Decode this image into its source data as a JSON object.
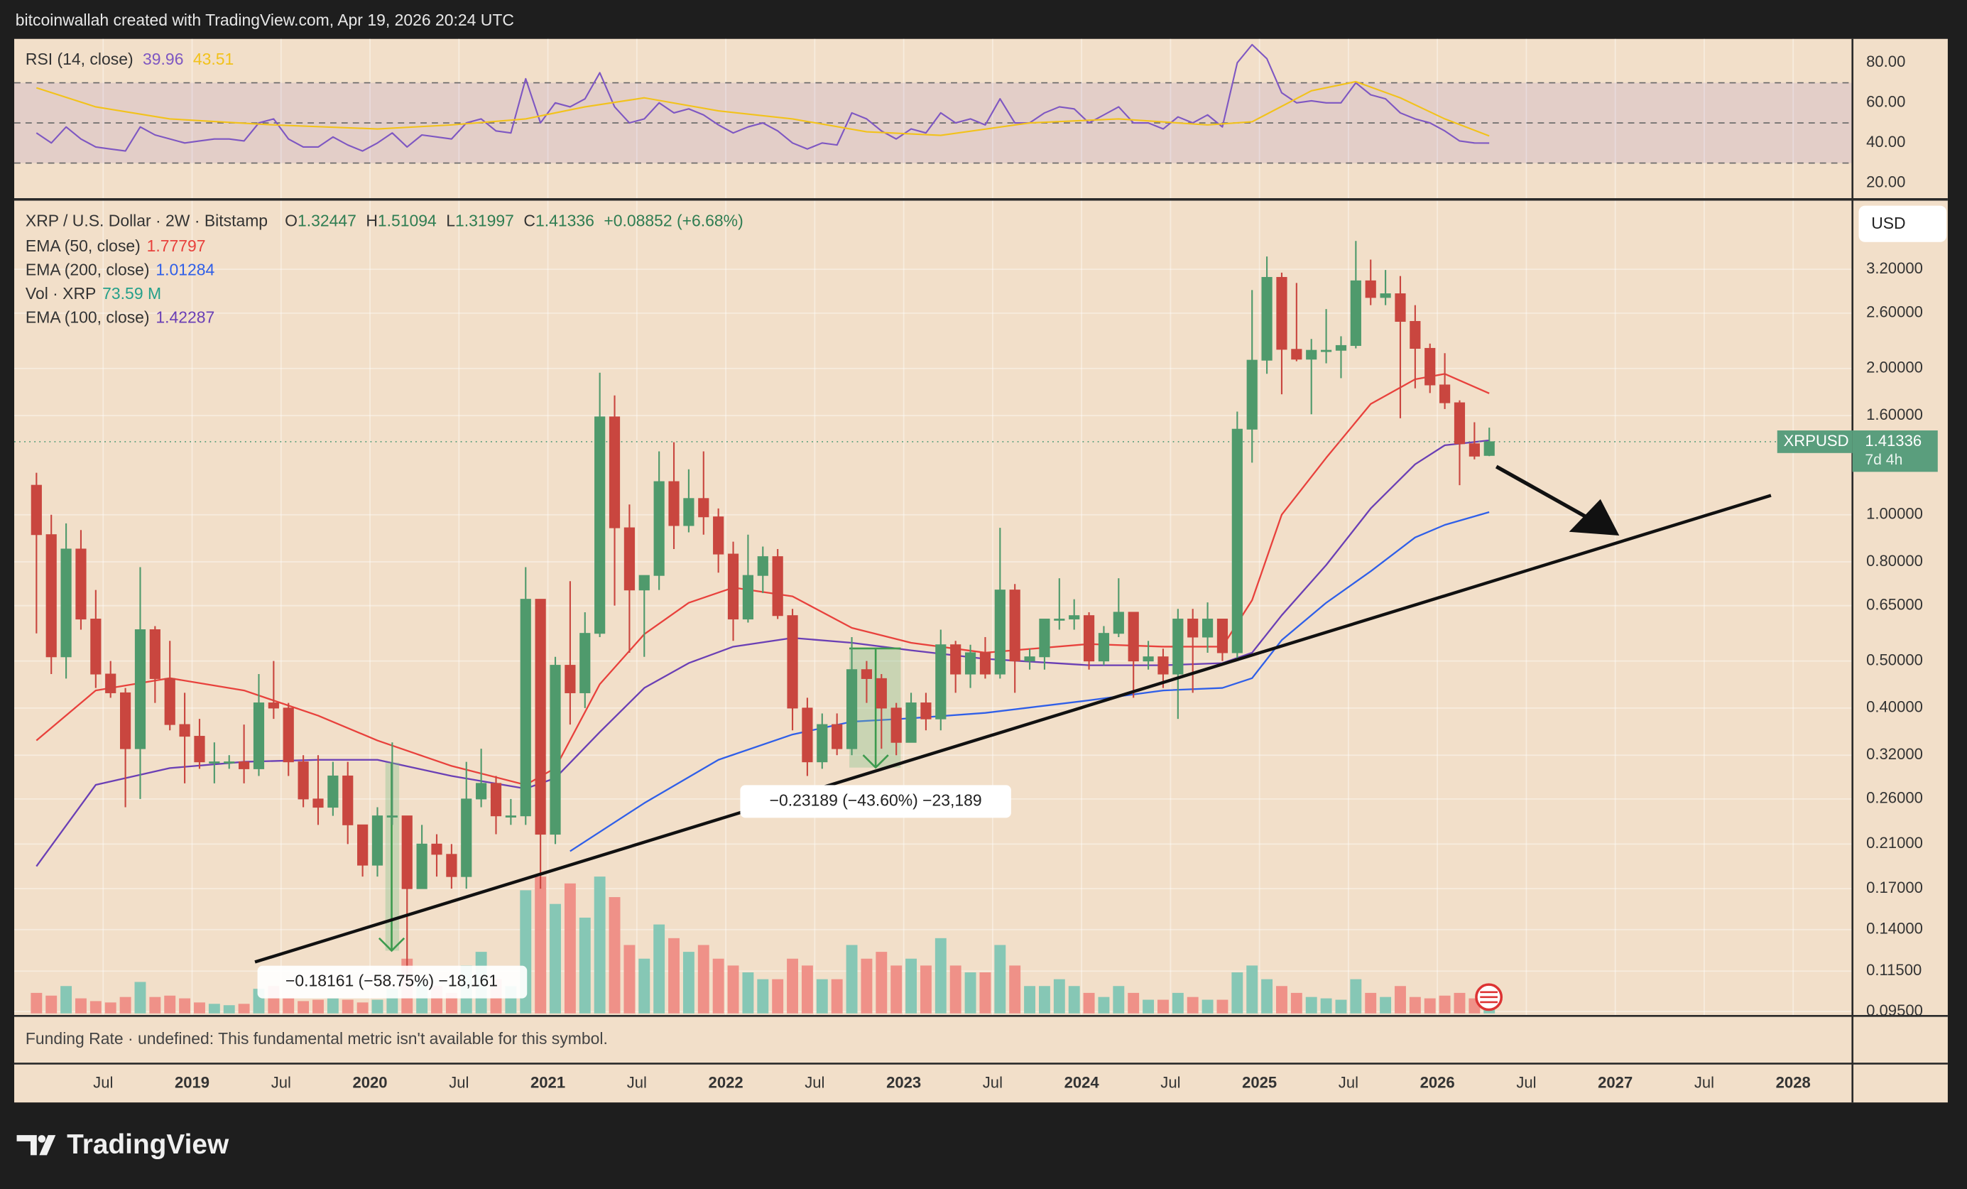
{
  "header": "bitcoinwallah created with TradingView.com, Apr 19, 2026 20:24 UTC",
  "brand": "TradingView",
  "chart_data": {
    "type": "candlestick",
    "title": "XRP / U.S. Dollar · 2W · Bitstamp",
    "ohlc_prefixes": [
      "O",
      "H",
      "L",
      "C"
    ],
    "change_label": "+0.08852 (+6.68%)",
    "currency": "USD",
    "symbol": "XRPUSD",
    "countdown": "7d 4h",
    "up_color": "#4f9a6c",
    "down_color": "#c9463f",
    "log_scale": true,
    "grid": true,
    "xlim": [
      "2018-01",
      "2028-05"
    ],
    "xticks": [
      {
        "value": "2018-07",
        "label": "Jul"
      },
      {
        "value": "2019-01",
        "label": "2019"
      },
      {
        "value": "2019-07",
        "label": "Jul"
      },
      {
        "value": "2020-01",
        "label": "2020"
      },
      {
        "value": "2020-07",
        "label": "Jul"
      },
      {
        "value": "2021-01",
        "label": "2021"
      },
      {
        "value": "2021-07",
        "label": "Jul"
      },
      {
        "value": "2022-01",
        "label": "2022"
      },
      {
        "value": "2022-07",
        "label": "Jul"
      },
      {
        "value": "2023-01",
        "label": "2023"
      },
      {
        "value": "2023-07",
        "label": "Jul"
      },
      {
        "value": "2024-01",
        "label": "2024"
      },
      {
        "value": "2024-07",
        "label": "Jul"
      },
      {
        "value": "2025-01",
        "label": "2025"
      },
      {
        "value": "2025-07",
        "label": "Jul"
      },
      {
        "value": "2026-01",
        "label": "2026"
      },
      {
        "value": "2026-07",
        "label": "Jul"
      },
      {
        "value": "2027-01",
        "label": "2027"
      },
      {
        "value": "2027-07",
        "label": "Jul"
      },
      {
        "value": "2028-01",
        "label": "2028"
      }
    ],
    "ylim": [
      0.093,
      4.43
    ],
    "yticks": [
      {
        "value": 3.2,
        "label": "3.20000"
      },
      {
        "value": 2.6,
        "label": "2.60000"
      },
      {
        "value": 2.0,
        "label": "2.00000"
      },
      {
        "value": 1.6,
        "label": "1.60000"
      },
      {
        "value": 1.0,
        "label": "1.00000"
      },
      {
        "value": 0.8,
        "label": "0.80000"
      },
      {
        "value": 0.65,
        "label": "0.65000"
      },
      {
        "value": 0.5,
        "label": "0.50000"
      },
      {
        "value": 0.4,
        "label": "0.40000"
      },
      {
        "value": 0.32,
        "label": "0.32000"
      },
      {
        "value": 0.26,
        "label": "0.26000"
      },
      {
        "value": 0.21,
        "label": "0.21000"
      },
      {
        "value": 0.17,
        "label": "0.17000"
      },
      {
        "value": 0.14,
        "label": "0.14000"
      },
      {
        "value": 0.115,
        "label": "0.11500"
      },
      {
        "value": 0.095,
        "label": "0.09500"
      }
    ],
    "x": [
      "2018-02",
      "2018-03",
      "2018-04",
      "2018-05",
      "2018-06",
      "2018-07",
      "2018-08",
      "2018-09",
      "2018-10",
      "2018-11",
      "2018-12",
      "2019-01",
      "2019-02",
      "2019-03",
      "2019-04",
      "2019-05",
      "2019-06",
      "2019-07",
      "2019-08",
      "2019-09",
      "2019-10",
      "2019-11",
      "2019-12",
      "2020-01",
      "2020-02",
      "2020-03",
      "2020-04",
      "2020-05",
      "2020-06",
      "2020-07",
      "2020-08",
      "2020-09",
      "2020-10",
      "2020-11",
      "2020-12",
      "2021-01",
      "2021-02",
      "2021-03",
      "2021-04",
      "2021-05",
      "2021-06",
      "2021-07",
      "2021-08",
      "2021-09",
      "2021-10",
      "2021-11",
      "2021-12",
      "2022-01",
      "2022-02",
      "2022-03",
      "2022-04",
      "2022-05",
      "2022-06",
      "2022-07",
      "2022-08",
      "2022-09",
      "2022-10",
      "2022-11",
      "2022-12",
      "2023-01",
      "2023-02",
      "2023-03",
      "2023-04",
      "2023-05",
      "2023-06",
      "2023-07",
      "2023-08",
      "2023-09",
      "2023-10",
      "2023-11",
      "2023-12",
      "2024-01",
      "2024-02",
      "2024-03",
      "2024-04",
      "2024-05",
      "2024-06",
      "2024-07",
      "2024-08",
      "2024-09",
      "2024-10",
      "2024-11",
      "2024-12",
      "2025-01",
      "2025-02",
      "2025-03",
      "2025-04",
      "2025-05",
      "2025-06",
      "2025-07",
      "2025-08",
      "2025-09",
      "2025-10",
      "2025-11",
      "2025-12",
      "2026-01",
      "2026-02",
      "2026-03",
      "2026-04"
    ],
    "open": [
      1.15,
      0.91,
      0.51,
      0.85,
      0.61,
      0.47,
      0.43,
      0.33,
      0.58,
      0.46,
      0.37,
      0.35,
      0.31,
      0.31,
      0.31,
      0.3,
      0.41,
      0.4,
      0.31,
      0.26,
      0.25,
      0.29,
      0.23,
      0.19,
      0.24,
      0.24,
      0.17,
      0.21,
      0.2,
      0.18,
      0.26,
      0.28,
      0.24,
      0.24,
      0.67,
      0.22,
      0.49,
      0.43,
      0.57,
      1.59,
      0.94,
      0.7,
      0.75,
      1.17,
      0.95,
      1.08,
      0.99,
      0.83,
      0.61,
      0.75,
      0.82,
      0.62,
      0.4,
      0.31,
      0.37,
      0.33,
      0.48,
      0.46,
      0.4,
      0.34,
      0.41,
      0.38,
      0.54,
      0.47,
      0.52,
      0.47,
      0.7,
      0.5,
      0.51,
      0.61,
      0.61,
      0.62,
      0.5,
      0.57,
      0.63,
      0.5,
      0.51,
      0.47,
      0.61,
      0.56,
      0.61,
      0.52,
      1.5,
      2.08,
      3.08,
      2.19,
      2.09,
      2.18,
      2.18,
      2.23,
      3.03,
      2.8,
      2.85,
      2.5,
      2.2,
      1.85,
      1.7,
      1.4,
      1.32447
    ],
    "high": [
      1.22,
      1.0,
      0.96,
      0.93,
      0.7,
      0.5,
      0.44,
      0.78,
      0.59,
      0.55,
      0.43,
      0.38,
      0.34,
      0.32,
      0.37,
      0.47,
      0.5,
      0.41,
      0.32,
      0.32,
      0.31,
      0.31,
      0.23,
      0.25,
      0.34,
      0.24,
      0.23,
      0.22,
      0.21,
      0.31,
      0.33,
      0.29,
      0.26,
      0.78,
      0.67,
      0.51,
      0.73,
      0.63,
      1.96,
      1.76,
      1.05,
      0.75,
      1.35,
      1.41,
      1.24,
      1.35,
      1.03,
      0.88,
      0.91,
      0.86,
      0.85,
      0.64,
      0.42,
      0.39,
      0.39,
      0.56,
      0.5,
      0.47,
      0.41,
      0.43,
      0.43,
      0.58,
      0.55,
      0.54,
      0.56,
      0.94,
      0.72,
      0.53,
      0.61,
      0.74,
      0.67,
      0.63,
      0.59,
      0.74,
      0.63,
      0.55,
      0.53,
      0.64,
      0.64,
      0.66,
      0.61,
      1.63,
      2.9,
      3.4,
      3.15,
      3.0,
      2.3,
      2.65,
      2.33,
      3.66,
      3.35,
      3.19,
      3.1,
      2.7,
      2.25,
      2.15,
      1.72,
      1.55,
      1.51094
    ],
    "low": [
      0.57,
      0.47,
      0.46,
      0.58,
      0.44,
      0.42,
      0.25,
      0.26,
      0.41,
      0.36,
      0.28,
      0.3,
      0.28,
      0.3,
      0.28,
      0.29,
      0.38,
      0.29,
      0.25,
      0.23,
      0.24,
      0.21,
      0.18,
      0.18,
      0.23,
      0.11,
      0.17,
      0.18,
      0.17,
      0.17,
      0.25,
      0.22,
      0.23,
      0.23,
      0.17,
      0.21,
      0.37,
      0.4,
      0.56,
      0.65,
      0.52,
      0.51,
      0.7,
      0.85,
      0.92,
      0.91,
      0.76,
      0.55,
      0.6,
      0.69,
      0.61,
      0.36,
      0.29,
      0.3,
      0.32,
      0.32,
      0.41,
      0.33,
      0.32,
      0.34,
      0.36,
      0.36,
      0.43,
      0.44,
      0.46,
      0.46,
      0.43,
      0.48,
      0.48,
      0.58,
      0.58,
      0.48,
      0.49,
      0.56,
      0.42,
      0.48,
      0.44,
      0.38,
      0.43,
      0.52,
      0.5,
      0.5,
      1.28,
      1.95,
      1.77,
      2.07,
      1.61,
      2.05,
      1.91,
      2.2,
      2.7,
      2.7,
      1.58,
      1.82,
      1.78,
      1.65,
      1.15,
      1.3,
      1.31997
    ],
    "close": [
      0.91,
      0.51,
      0.85,
      0.61,
      0.47,
      0.43,
      0.33,
      0.58,
      0.46,
      0.37,
      0.35,
      0.31,
      0.31,
      0.31,
      0.3,
      0.41,
      0.4,
      0.31,
      0.26,
      0.25,
      0.29,
      0.23,
      0.19,
      0.24,
      0.24,
      0.17,
      0.21,
      0.2,
      0.18,
      0.26,
      0.28,
      0.24,
      0.24,
      0.67,
      0.22,
      0.49,
      0.43,
      0.57,
      1.59,
      0.94,
      0.7,
      0.75,
      1.17,
      0.95,
      1.08,
      0.99,
      0.83,
      0.61,
      0.75,
      0.82,
      0.62,
      0.4,
      0.31,
      0.37,
      0.33,
      0.48,
      0.46,
      0.4,
      0.34,
      0.41,
      0.38,
      0.54,
      0.47,
      0.52,
      0.47,
      0.7,
      0.5,
      0.51,
      0.61,
      0.61,
      0.62,
      0.5,
      0.57,
      0.63,
      0.5,
      0.51,
      0.47,
      0.61,
      0.56,
      0.61,
      0.52,
      1.5,
      2.08,
      3.08,
      2.19,
      2.09,
      2.18,
      2.18,
      2.23,
      3.03,
      2.8,
      2.85,
      2.5,
      2.2,
      1.85,
      1.7,
      1.4,
      1.32,
      1.41336
    ],
    "series": [
      {
        "name": "EMA (50, close)",
        "color": "#e8413c",
        "x": [
          "2018-02",
          "2018-06",
          "2018-11",
          "2019-04",
          "2019-09",
          "2020-01",
          "2020-06",
          "2020-11",
          "2021-01",
          "2021-04",
          "2021-07",
          "2021-10",
          "2022-01",
          "2022-05",
          "2022-09",
          "2023-01",
          "2023-06",
          "2024-01",
          "2024-06",
          "2024-10",
          "2024-12",
          "2025-02",
          "2025-05",
          "2025-08",
          "2025-11",
          "2026-01",
          "2026-04"
        ],
        "values": [
          0.343,
          0.435,
          0.461,
          0.435,
          0.386,
          0.343,
          0.304,
          0.278,
          0.301,
          0.448,
          0.568,
          0.659,
          0.708,
          0.679,
          0.585,
          0.545,
          0.52,
          0.542,
          0.535,
          0.535,
          0.667,
          1.0,
          1.31,
          1.69,
          1.9,
          1.95,
          1.77797
        ]
      },
      {
        "name": "EMA (200, close)",
        "color": "#2f5fe8",
        "x": [
          "2021-02",
          "2021-07",
          "2021-12",
          "2022-05",
          "2022-09",
          "2023-01",
          "2023-06",
          "2024-01",
          "2024-06",
          "2024-10",
          "2024-12",
          "2025-02",
          "2025-05",
          "2025-08",
          "2025-11",
          "2026-01",
          "2026-04"
        ],
        "values": [
          0.203,
          0.255,
          0.313,
          0.353,
          0.375,
          0.381,
          0.391,
          0.415,
          0.435,
          0.44,
          0.461,
          0.552,
          0.659,
          0.765,
          0.898,
          0.953,
          1.01284
        ]
      },
      {
        "name": "EMA (100, close)",
        "color": "#6a3fb5",
        "x": [
          "2018-02",
          "2018-06",
          "2018-11",
          "2019-04",
          "2019-09",
          "2020-01",
          "2020-06",
          "2020-11",
          "2021-01",
          "2021-04",
          "2021-07",
          "2021-10",
          "2022-01",
          "2022-05",
          "2022-09",
          "2023-01",
          "2023-06",
          "2024-01",
          "2024-06",
          "2024-10",
          "2024-12",
          "2025-02",
          "2025-05",
          "2025-08",
          "2025-11",
          "2026-01",
          "2026-04"
        ],
        "values": [
          0.189,
          0.278,
          0.301,
          0.31,
          0.313,
          0.313,
          0.29,
          0.273,
          0.287,
          0.357,
          0.44,
          0.495,
          0.535,
          0.558,
          0.545,
          0.526,
          0.505,
          0.49,
          0.49,
          0.495,
          0.52,
          0.621,
          0.788,
          1.03,
          1.27,
          1.39,
          1.42287
        ]
      }
    ],
    "volume": {
      "name": "Vol · XRP",
      "legend_value_label": "73.59 M",
      "up_color": "#86c7b5",
      "down_color": "#ef9188",
      "label_color": "#26a08a",
      "ylim": [
        0,
        1100
      ],
      "values": [
        150,
        130,
        200,
        110,
        90,
        80,
        120,
        230,
        120,
        130,
        110,
        80,
        70,
        60,
        70,
        180,
        200,
        110,
        90,
        100,
        110,
        100,
        80,
        100,
        180,
        400,
        250,
        200,
        150,
        350,
        450,
        250,
        200,
        900,
        1000,
        800,
        950,
        700,
        1000,
        850,
        500,
        400,
        650,
        550,
        450,
        500,
        400,
        350,
        300,
        250,
        250,
        400,
        350,
        250,
        250,
        500,
        400,
        450,
        350,
        400,
        350,
        550,
        350,
        300,
        300,
        500,
        350,
        200,
        200,
        250,
        200,
        150,
        120,
        200,
        150,
        100,
        100,
        150,
        120,
        100,
        100,
        300,
        350,
        250,
        200,
        150,
        120,
        110,
        100,
        250,
        150,
        120,
        200,
        120,
        110,
        130,
        150,
        110,
        73.59
      ]
    },
    "rsi": {
      "name": "RSI (14, close)",
      "color": "#7e57c2",
      "ylim": [
        12.5,
        91.9
      ],
      "yticks": [
        {
          "value": 80,
          "label": "80.00"
        },
        {
          "value": 60,
          "label": "60.00"
        },
        {
          "value": 40,
          "label": "40.00"
        },
        {
          "value": 20,
          "label": "20.00"
        }
      ],
      "levels": [
        30,
        50,
        70
      ],
      "values": [
        45,
        40,
        48,
        42,
        38,
        37,
        36,
        48,
        44,
        42,
        40,
        41,
        42,
        42,
        41,
        50,
        52,
        42,
        38,
        38,
        43,
        39,
        36,
        40,
        45,
        38,
        44,
        43,
        42,
        50,
        52,
        46,
        45,
        72,
        50,
        60,
        58,
        62,
        75,
        58,
        50,
        52,
        60,
        55,
        57,
        54,
        49,
        45,
        48,
        50,
        46,
        40,
        37,
        40,
        39,
        55,
        52,
        46,
        42,
        47,
        45,
        55,
        50,
        52,
        49,
        62,
        50,
        50,
        55,
        58,
        57,
        50,
        54,
        58,
        50,
        50,
        47,
        53,
        50,
        54,
        48,
        80,
        89,
        82,
        65,
        60,
        61,
        60,
        60,
        70,
        64,
        62,
        55,
        52,
        50,
        46,
        41,
        40,
        39.96
      ],
      "ma": {
        "color": "#f2c21b",
        "x": [
          "2018-02",
          "2018-06",
          "2018-11",
          "2019-06",
          "2020-01",
          "2020-06",
          "2020-11",
          "2021-03",
          "2021-07",
          "2021-12",
          "2022-05",
          "2022-10",
          "2023-03",
          "2023-09",
          "2024-03",
          "2024-09",
          "2024-12",
          "2025-04",
          "2025-07",
          "2025-10",
          "2026-01",
          "2026-04"
        ],
        "values": [
          67.5,
          58,
          52,
          49,
          47,
          49,
          52,
          58,
          62.5,
          56,
          52,
          45.6,
          43.8,
          50,
          52,
          49,
          50.6,
          66,
          70.6,
          62.5,
          52,
          43.51
        ]
      }
    },
    "annotations": [
      "−0.23189 (−43.60%) −23,189",
      "−0.18161 (−58.75%) −18,161"
    ],
    "footer_note": "Funding Rate · undefined: This fundamental metric isn't available for this symbol."
  }
}
